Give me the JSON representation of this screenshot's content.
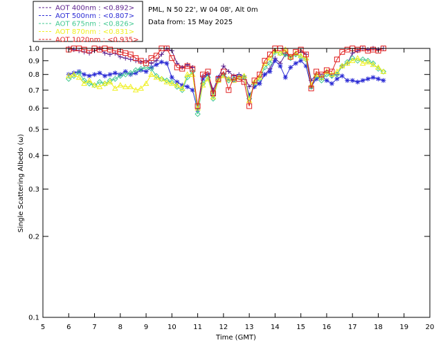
{
  "chart_data": {
    "type": "line",
    "title": "",
    "xlabel": "Time (GMT)",
    "ylabel": "Single Scattering Albedo (ω)",
    "xlim": [
      5,
      20
    ],
    "ylim": [
      0.1,
      1.0
    ],
    "yscale": "log",
    "x_ticks": [
      5,
      6,
      7,
      8,
      9,
      10,
      11,
      12,
      13,
      14,
      15,
      16,
      17,
      18,
      19,
      20
    ],
    "y_ticks": [
      0.1,
      0.2,
      0.3,
      0.4,
      0.5,
      0.6,
      0.7,
      0.8,
      0.9,
      1.0
    ],
    "y_tick_labels": [
      "0.1",
      "0.2",
      "0.3",
      "0.4",
      "0.5",
      "0.6",
      "0.7",
      "0.8",
      "0.9",
      "1.0"
    ],
    "grid": false,
    "legend_position": "top-left",
    "info_lines": [
      "PML, N 50 22', W 04 08', Alt 0m",
      "Data from: 15 May 2025"
    ],
    "x": [
      6.0,
      6.2,
      6.4,
      6.6,
      6.8,
      7.0,
      7.2,
      7.4,
      7.6,
      7.8,
      8.0,
      8.2,
      8.4,
      8.6,
      8.8,
      9.0,
      9.2,
      9.4,
      9.6,
      9.8,
      10.0,
      10.2,
      10.4,
      10.6,
      10.8,
      11.0,
      11.2,
      11.4,
      11.6,
      11.8,
      12.0,
      12.2,
      12.4,
      12.6,
      12.8,
      13.0,
      13.2,
      13.4,
      13.6,
      13.8,
      14.0,
      14.2,
      14.4,
      14.6,
      14.8,
      15.0,
      15.2,
      15.4,
      15.6,
      15.8,
      16.0,
      16.2,
      16.4,
      16.6,
      16.8,
      17.0,
      17.2,
      17.4,
      17.6,
      17.8,
      18.0,
      18.2
    ],
    "series": [
      {
        "name": "AOT  400nm : <0.892>",
        "color": "#5a1e8c",
        "marker": "plus",
        "values": [
          1.0,
          0.99,
          0.98,
          0.97,
          0.96,
          0.98,
          1.0,
          0.96,
          0.95,
          0.96,
          0.93,
          0.92,
          0.91,
          0.9,
          0.89,
          0.9,
          0.88,
          0.9,
          0.95,
          1.0,
          0.98,
          0.88,
          0.85,
          0.87,
          0.85,
          0.6,
          0.79,
          0.8,
          0.7,
          0.78,
          0.86,
          0.82,
          0.79,
          0.8,
          0.79,
          0.72,
          0.75,
          0.74,
          0.8,
          0.84,
          0.92,
          0.88,
          0.95,
          0.93,
          0.95,
          0.97,
          0.95,
          0.76,
          0.8,
          0.78,
          0.82,
          0.79,
          0.8,
          0.86,
          0.88,
          0.96,
          0.98,
          1.0,
          0.99,
          1.0,
          0.99,
          1.0
        ]
      },
      {
        "name": "AOT  500nm : <0.807>",
        "color": "#2a2ad4",
        "marker": "star",
        "values": [
          0.8,
          0.81,
          0.82,
          0.8,
          0.79,
          0.8,
          0.81,
          0.79,
          0.8,
          0.81,
          0.8,
          0.82,
          0.8,
          0.81,
          0.83,
          0.82,
          0.85,
          0.87,
          0.89,
          0.88,
          0.78,
          0.75,
          0.73,
          0.72,
          0.7,
          0.59,
          0.77,
          0.8,
          0.67,
          0.78,
          0.8,
          0.77,
          0.76,
          0.79,
          0.78,
          0.67,
          0.72,
          0.74,
          0.8,
          0.82,
          0.9,
          0.86,
          0.78,
          0.85,
          0.88,
          0.9,
          0.86,
          0.72,
          0.77,
          0.79,
          0.76,
          0.74,
          0.77,
          0.79,
          0.76,
          0.76,
          0.75,
          0.76,
          0.77,
          0.78,
          0.77,
          0.76
        ]
      },
      {
        "name": "AOT  675nm : <0.826>",
        "color": "#40c890",
        "marker": "diamond",
        "values": [
          0.77,
          0.79,
          0.81,
          0.76,
          0.74,
          0.73,
          0.75,
          0.74,
          0.76,
          0.77,
          0.79,
          0.8,
          0.81,
          0.83,
          0.84,
          0.85,
          0.84,
          0.79,
          0.77,
          0.76,
          0.75,
          0.72,
          0.7,
          0.78,
          0.82,
          0.57,
          0.74,
          0.78,
          0.65,
          0.76,
          0.8,
          0.76,
          0.77,
          0.78,
          0.78,
          0.65,
          0.74,
          0.77,
          0.85,
          0.88,
          0.97,
          0.96,
          0.95,
          0.92,
          0.95,
          0.93,
          0.91,
          0.72,
          0.79,
          0.76,
          0.8,
          0.79,
          0.8,
          0.86,
          0.89,
          0.92,
          0.9,
          0.91,
          0.9,
          0.88,
          0.84,
          0.82
        ]
      },
      {
        "name": "AOT  870nm : <0.831>",
        "color": "#f0f020",
        "marker": "triangle",
        "values": [
          0.79,
          0.8,
          0.78,
          0.74,
          0.76,
          0.73,
          0.72,
          0.74,
          0.75,
          0.71,
          0.73,
          0.72,
          0.72,
          0.7,
          0.71,
          0.74,
          0.8,
          0.78,
          0.77,
          0.75,
          0.74,
          0.73,
          0.71,
          0.8,
          0.8,
          0.6,
          0.73,
          0.77,
          0.66,
          0.76,
          0.79,
          0.77,
          0.76,
          0.78,
          0.79,
          0.64,
          0.75,
          0.78,
          0.88,
          0.92,
          0.98,
          0.96,
          0.99,
          0.93,
          0.96,
          0.94,
          0.92,
          0.73,
          0.8,
          0.78,
          0.82,
          0.8,
          0.82,
          0.86,
          0.88,
          0.9,
          0.92,
          0.88,
          0.89,
          0.87,
          0.85,
          0.82
        ]
      },
      {
        "name": "AOT 1020nm : <0.935>",
        "color": "#e02020",
        "marker": "square",
        "values": [
          0.99,
          1.0,
          1.0,
          0.99,
          0.98,
          1.0,
          0.99,
          1.0,
          0.99,
          0.98,
          0.97,
          0.96,
          0.95,
          0.92,
          0.9,
          0.88,
          0.92,
          0.94,
          1.0,
          1.0,
          0.92,
          0.85,
          0.84,
          0.86,
          0.84,
          0.61,
          0.8,
          0.82,
          0.68,
          0.77,
          0.82,
          0.7,
          0.78,
          0.77,
          0.75,
          0.61,
          0.76,
          0.8,
          0.9,
          0.95,
          1.0,
          1.0,
          0.98,
          0.93,
          0.97,
          0.99,
          0.95,
          0.71,
          0.82,
          0.8,
          0.83,
          0.82,
          0.91,
          0.97,
          0.99,
          1.0,
          0.99,
          1.0,
          0.98,
          0.99,
          0.98,
          1.0
        ]
      }
    ]
  }
}
